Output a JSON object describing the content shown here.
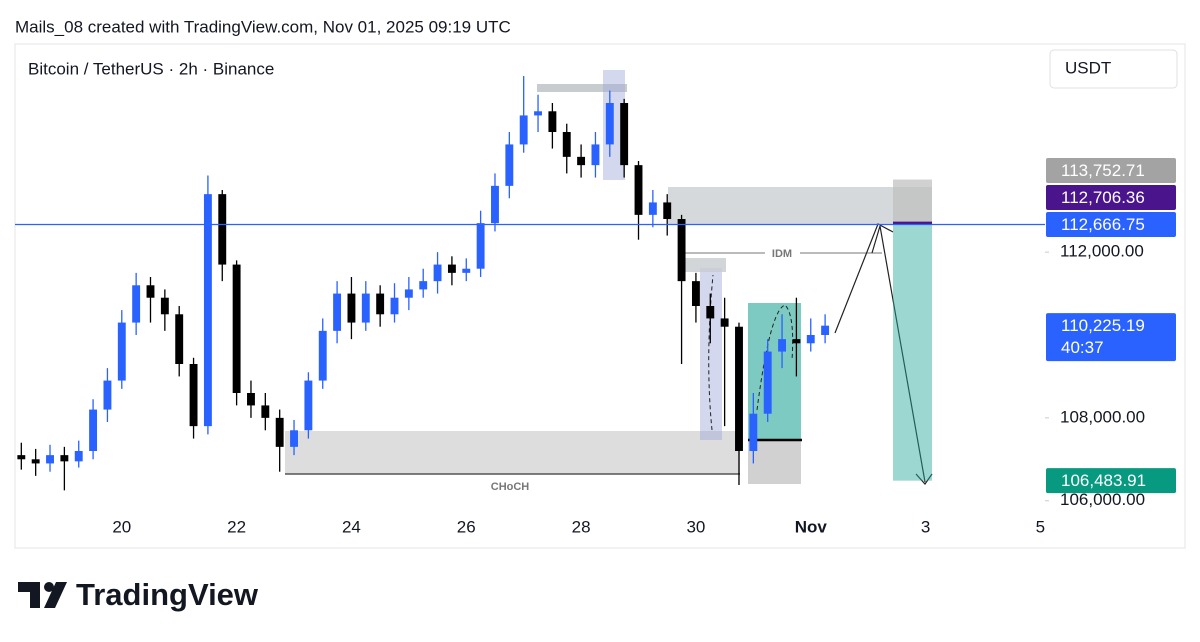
{
  "header": "Mails_08 created with TradingView.com, Nov 01, 2025 09:19 UTC",
  "chart_data": {
    "type": "candlestick",
    "title": "Bitcoin / TetherUS · 2h · Binance",
    "currency": "USDT",
    "x": [
      18.25,
      18.5,
      18.75,
      19.0,
      19.25,
      19.5,
      19.75,
      20.0,
      20.25,
      20.5,
      20.75,
      21.0,
      21.25,
      21.5,
      21.75,
      22.0,
      22.25,
      22.5,
      22.75,
      23.0,
      23.25,
      23.5,
      23.75,
      24.0,
      24.25,
      24.5,
      24.75,
      25.0,
      25.25,
      25.5,
      25.75,
      26.0,
      26.25,
      26.5,
      26.75,
      27.0,
      27.25,
      27.5,
      27.75,
      28.0,
      28.25,
      28.5,
      28.75,
      29.0,
      29.25,
      29.5,
      29.75,
      30.0,
      30.25,
      30.5,
      30.75,
      31.0,
      31.25,
      31.5,
      31.75,
      32.0,
      32.25
    ],
    "open": [
      107100,
      107000,
      106900,
      107100,
      106950,
      107200,
      108200,
      108900,
      110300,
      111200,
      110900,
      110500,
      109300,
      107800,
      113400,
      111700,
      108600,
      108300,
      108000,
      107300,
      107700,
      108900,
      110100,
      111000,
      110300,
      111000,
      110500,
      110900,
      111100,
      111300,
      111700,
      111500,
      111600,
      112700,
      113600,
      114600,
      115300,
      115400,
      114900,
      114300,
      114100,
      114600,
      115600,
      114100,
      112900,
      113200,
      112800,
      111300,
      110700,
      110400,
      110200,
      107200,
      108100,
      109600,
      109900,
      109800,
      110000
    ],
    "high": [
      107400,
      107250,
      107350,
      107300,
      107450,
      108450,
      109200,
      110600,
      111500,
      111400,
      111100,
      110700,
      109450,
      113850,
      113500,
      111800,
      108900,
      108600,
      108200,
      107950,
      109100,
      110400,
      111300,
      111400,
      111300,
      111200,
      111250,
      111400,
      111600,
      112000,
      111900,
      111850,
      113000,
      113900,
      114900,
      116250,
      115800,
      115600,
      115100,
      114600,
      114900,
      115900,
      115700,
      114200,
      113500,
      113400,
      112900,
      111500,
      111000,
      110900,
      110300,
      108600,
      109900,
      110500,
      110900,
      110400,
      110500
    ],
    "low": [
      106750,
      106600,
      106700,
      106250,
      106800,
      107000,
      107900,
      108700,
      110000,
      110300,
      110100,
      109000,
      107500,
      107600,
      111300,
      108300,
      108000,
      107700,
      106700,
      107100,
      107500,
      108700,
      109800,
      109900,
      110100,
      110200,
      110300,
      110600,
      110900,
      111000,
      111200,
      111300,
      111400,
      112500,
      113300,
      114400,
      114900,
      114500,
      113900,
      113800,
      113800,
      114300,
      113800,
      112300,
      112600,
      112400,
      109300,
      110300,
      109800,
      107800,
      106380,
      106900,
      107900,
      109200,
      109000,
      109600,
      109800
    ],
    "close": [
      107000,
      106900,
      107100,
      106950,
      107200,
      108200,
      108900,
      110300,
      111200,
      110900,
      110500,
      109300,
      107800,
      113400,
      111700,
      108600,
      108300,
      108000,
      107300,
      107700,
      108900,
      110100,
      111000,
      110300,
      111000,
      110500,
      110900,
      111100,
      111300,
      111700,
      111500,
      111600,
      112700,
      113600,
      114600,
      115300,
      115400,
      114900,
      114300,
      114100,
      114600,
      115600,
      114100,
      112900,
      113200,
      112800,
      111300,
      110700,
      110400,
      110200,
      107200,
      108100,
      109600,
      109900,
      109800,
      110000,
      110225.19
    ],
    "up_color": "#2962ff",
    "down_color": "#000000",
    "xlim": [
      18.14,
      36.08
    ],
    "xticks": [
      20,
      22,
      24,
      26,
      28,
      30,
      {
        "value": 32,
        "label": "Nov"
      },
      {
        "value": 34,
        "label": "3"
      },
      {
        "value": 36,
        "label": "5"
      }
    ],
    "ylim": [
      105800,
      117000
    ],
    "yticks": [
      {
        "value": 106000,
        "label": "106,000.00"
      },
      {
        "value": 108000,
        "label": "108,000.00"
      },
      {
        "value": 112000,
        "label": "112,000.00"
      }
    ],
    "price_labels": [
      {
        "value": 106483.91,
        "label": "106,483.91",
        "color": "#089981"
      },
      {
        "value": 110225.19,
        "label": "110,225.19",
        "countdown": "40:37",
        "color": "#2962ff"
      },
      {
        "value": 112666.75,
        "label": "112,666.75",
        "color": "#2962ff"
      },
      {
        "value": 112706.36,
        "label": "112,706.36",
        "color": "#4a148c"
      },
      {
        "value": 113752.71,
        "label": "113,752.71",
        "color": "#a3a3a3"
      }
    ],
    "annotations": [
      "IDM",
      "CHoCH"
    ]
  },
  "footer": {
    "logo": "TradingView"
  }
}
